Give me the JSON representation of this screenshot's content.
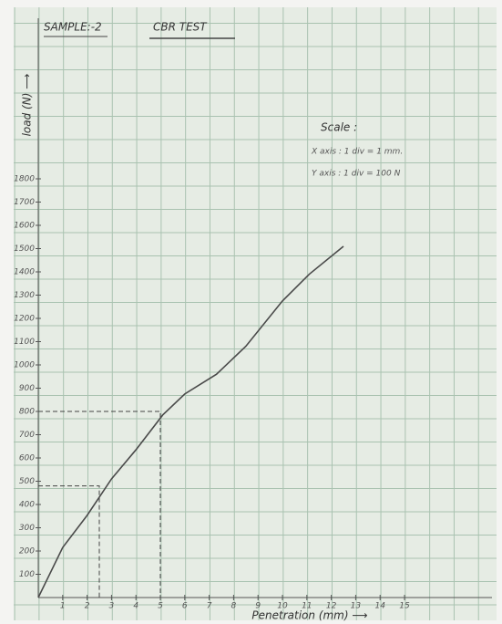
{
  "chart_data": {
    "type": "line",
    "title": "CBR TEST",
    "subtitle": "SAMPLE:-2",
    "x_label": "Penetration (mm) ⟶",
    "y_label": "load (N) ⟶",
    "annotations": [
      "Scale :",
      "X axis : 1 div = 1 mm.",
      "Y axis : 1 div = 100 N"
    ],
    "x": [
      0,
      1,
      2,
      3,
      4,
      5.1,
      6,
      7.3,
      8.5,
      10,
      11.1,
      12.5
    ],
    "values": [
      0,
      215,
      353,
      510,
      635,
      785,
      875,
      960,
      1080,
      1275,
      1390,
      1510
    ],
    "color": "#4a4a4a",
    "reference_points": [
      {
        "x": 2.5,
        "y": 480
      },
      {
        "x": 5,
        "y": 800
      }
    ],
    "xlim": [
      0,
      18.75
    ],
    "ylim": [
      0,
      2500
    ],
    "xticks": [
      1,
      2,
      3,
      4,
      5,
      6,
      7,
      8,
      9,
      10,
      11,
      12,
      13,
      14,
      15
    ],
    "yticks": [
      100,
      200,
      300,
      400,
      500,
      600,
      700,
      800,
      900,
      1000,
      1100,
      1200,
      1300,
      1400,
      1500,
      1600,
      1700,
      1800
    ]
  }
}
